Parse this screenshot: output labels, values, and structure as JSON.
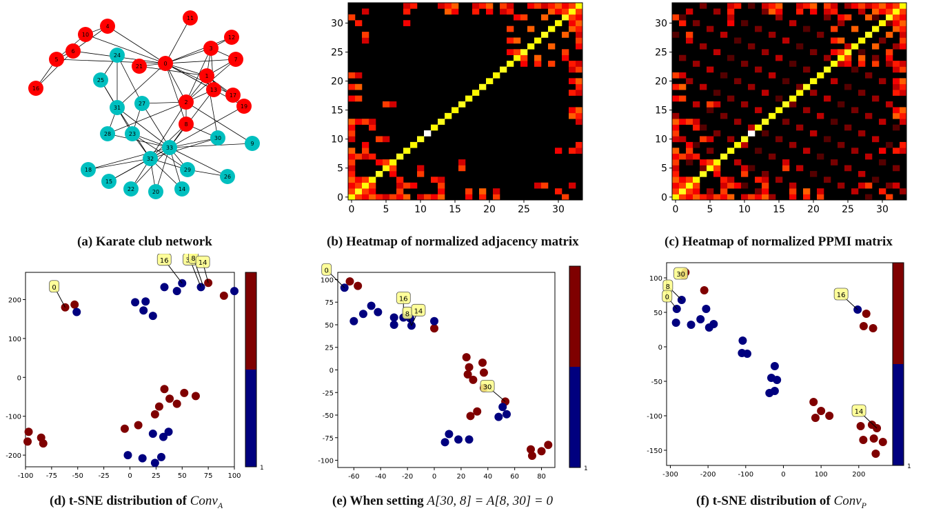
{
  "captions": {
    "a": "(a) Karate club network",
    "b": "(b) Heatmap of normalized adjacency matrix",
    "c": "(c) Heatmap of normalized PPMI matrix",
    "d_prefix": "(d) t-SNE distribution of ",
    "d_math": "Conv",
    "d_sub": "A",
    "e_prefix": "(e) When setting ",
    "e_math": "A[30, 8] = A[8, 30] = 0",
    "f_prefix": "(f) t-SNE distribution of ",
    "f_math": "Conv",
    "f_sub": "P"
  },
  "colors": {
    "red_group": "#ff0000",
    "cyan_group": "#00bfbf",
    "navy": "#00007f",
    "maroon": "#7f0000",
    "annotation": "#ffff88"
  },
  "chart_data": [
    {
      "type": "network",
      "nodes": [
        {
          "id": "0",
          "group": "red"
        },
        {
          "id": "1",
          "group": "red"
        },
        {
          "id": "2",
          "group": "red"
        },
        {
          "id": "3",
          "group": "red"
        },
        {
          "id": "4",
          "group": "red"
        },
        {
          "id": "5",
          "group": "red"
        },
        {
          "id": "6",
          "group": "red"
        },
        {
          "id": "7",
          "group": "red"
        },
        {
          "id": "8",
          "group": "red"
        },
        {
          "id": "10",
          "group": "red"
        },
        {
          "id": "11",
          "group": "red"
        },
        {
          "id": "12",
          "group": "red"
        },
        {
          "id": "13",
          "group": "red"
        },
        {
          "id": "16",
          "group": "red"
        },
        {
          "id": "17",
          "group": "red"
        },
        {
          "id": "19",
          "group": "red"
        },
        {
          "id": "21",
          "group": "red"
        },
        {
          "id": "9",
          "group": "cyan"
        },
        {
          "id": "14",
          "group": "cyan"
        },
        {
          "id": "15",
          "group": "cyan"
        },
        {
          "id": "18",
          "group": "cyan"
        },
        {
          "id": "20",
          "group": "cyan"
        },
        {
          "id": "22",
          "group": "cyan"
        },
        {
          "id": "23",
          "group": "cyan"
        },
        {
          "id": "24",
          "group": "cyan"
        },
        {
          "id": "25",
          "group": "cyan"
        },
        {
          "id": "26",
          "group": "cyan"
        },
        {
          "id": "27",
          "group": "cyan"
        },
        {
          "id": "28",
          "group": "cyan"
        },
        {
          "id": "29",
          "group": "cyan"
        },
        {
          "id": "30",
          "group": "cyan"
        },
        {
          "id": "31",
          "group": "cyan"
        },
        {
          "id": "32",
          "group": "cyan"
        },
        {
          "id": "33",
          "group": "cyan"
        }
      ]
    },
    {
      "type": "heatmap",
      "name": "normalized adjacency",
      "size": 34,
      "xticks": [
        0,
        5,
        10,
        15,
        20,
        25,
        30
      ],
      "yticks": [
        0,
        5,
        10,
        15,
        20,
        25,
        30
      ],
      "colormap": "hot"
    },
    {
      "type": "heatmap",
      "name": "normalized PPMI",
      "size": 34,
      "xticks": [
        0,
        5,
        10,
        15,
        20,
        25,
        30
      ],
      "yticks": [
        0,
        5,
        10,
        15,
        20,
        25,
        30
      ],
      "colormap": "hot"
    },
    {
      "type": "scatter",
      "xlim": [
        -100,
        100
      ],
      "ylim": [
        -230,
        270
      ],
      "xticks": [
        -100,
        -75,
        -50,
        -25,
        0,
        25,
        50,
        75,
        100
      ],
      "yticks": [
        -200,
        -100,
        0,
        100,
        200
      ],
      "colorbar_tick": "1",
      "series": [
        {
          "color": "maroon",
          "points": [
            [
              -62,
              180
            ],
            [
              -53,
              187
            ],
            [
              75,
              243
            ],
            [
              90,
              210
            ],
            [
              -97,
              -140
            ],
            [
              -98,
              -165
            ],
            [
              -85,
              -155
            ],
            [
              -83,
              -170
            ],
            [
              -5,
              -132
            ],
            [
              8,
              -123
            ],
            [
              24,
              -95
            ],
            [
              28,
              -75
            ],
            [
              33,
              -30
            ],
            [
              38,
              -55
            ],
            [
              45,
              -68
            ],
            [
              52,
              -40
            ],
            [
              63,
              -48
            ]
          ]
        },
        {
          "color": "navy",
          "points": [
            [
              -51,
              168
            ],
            [
              5,
              193
            ],
            [
              13,
              172
            ],
            [
              15,
              195
            ],
            [
              22,
              158
            ],
            [
              33,
              232
            ],
            [
              45,
              222
            ],
            [
              50,
              242
            ],
            [
              68,
              232
            ],
            [
              100,
              222
            ],
            [
              -2,
              -200
            ],
            [
              12,
              -208
            ],
            [
              22,
              -145
            ],
            [
              24,
              -220
            ],
            [
              30,
              -205
            ],
            [
              32,
              -153
            ],
            [
              37,
              -140
            ]
          ]
        }
      ],
      "annotations": [
        {
          "label": "0",
          "x": -62,
          "y": 180
        },
        {
          "label": "16",
          "x": 50,
          "y": 242
        },
        {
          "label": "30",
          "x": 68,
          "y": 232
        },
        {
          "label": "8",
          "x": 70,
          "y": 236
        },
        {
          "label": "14",
          "x": 75,
          "y": 243
        }
      ]
    },
    {
      "type": "scatter",
      "xlim": [
        -72,
        90
      ],
      "ylim": [
        -108,
        108
      ],
      "xticks": [
        -60,
        -40,
        -20,
        0,
        20,
        40,
        60,
        80
      ],
      "yticks": [
        -100,
        -75,
        -50,
        -25,
        0,
        25,
        50,
        75,
        100
      ],
      "colorbar_tick": "1",
      "series": [
        {
          "color": "maroon",
          "points": [
            [
              -63,
              98
            ],
            [
              -57,
              93
            ],
            [
              0,
              46
            ],
            [
              24,
              14
            ],
            [
              26,
              3
            ],
            [
              25,
              -5
            ],
            [
              29,
              -11
            ],
            [
              36,
              8
            ],
            [
              37,
              -3
            ],
            [
              37,
              -20
            ],
            [
              53,
              -35
            ],
            [
              27,
              -51
            ],
            [
              32,
              -46
            ],
            [
              72,
              -88
            ],
            [
              73,
              -95
            ],
            [
              80,
              -90
            ],
            [
              85,
              -83
            ]
          ]
        },
        {
          "color": "navy",
          "points": [
            [
              -67,
              91
            ],
            [
              -60,
              54
            ],
            [
              -53,
              62
            ],
            [
              -47,
              71
            ],
            [
              -42,
              64
            ],
            [
              -30,
              50
            ],
            [
              -30,
              58
            ],
            [
              -23,
              58
            ],
            [
              -18,
              57
            ],
            [
              -17,
              49
            ],
            [
              0,
              54
            ],
            [
              48,
              -52
            ],
            [
              51,
              -41
            ],
            [
              54,
              -49
            ],
            [
              8,
              -80
            ],
            [
              11,
              -71
            ],
            [
              18,
              -77
            ],
            [
              26,
              -77
            ]
          ]
        }
      ],
      "annotations": [
        {
          "label": "0",
          "x": -67,
          "y": 91
        },
        {
          "label": "16",
          "x": -23,
          "y": 58
        },
        {
          "label": "8",
          "x": -17,
          "y": 49
        },
        {
          "label": "14",
          "x": -17,
          "y": 49
        },
        {
          "label": "30",
          "x": 53,
          "y": -35
        }
      ]
    },
    {
      "type": "scatter",
      "xlim": [
        -310,
        290
      ],
      "ylim": [
        -172,
        122
      ],
      "xticks": [
        -300,
        -200,
        -100,
        0,
        100,
        200
      ],
      "yticks": [
        -150,
        -100,
        -50,
        0,
        50,
        100
      ],
      "colorbar_tick": "1",
      "series": [
        {
          "color": "maroon",
          "points": [
            [
              -260,
              108
            ],
            [
              -265,
              104
            ],
            [
              -210,
              82
            ],
            [
              220,
              48
            ],
            [
              213,
              30
            ],
            [
              238,
              27
            ],
            [
              80,
              -80
            ],
            [
              85,
              -103
            ],
            [
              100,
              -93
            ],
            [
              122,
              -100
            ],
            [
              205,
              -115
            ],
            [
              212,
              -135
            ],
            [
              235,
              -113
            ],
            [
              240,
              -133
            ],
            [
              248,
              -118
            ],
            [
              264,
              -138
            ],
            [
              245,
              -155
            ]
          ]
        },
        {
          "color": "navy",
          "points": [
            [
              -283,
              55
            ],
            [
              -270,
              68
            ],
            [
              -285,
              35
            ],
            [
              -245,
              32
            ],
            [
              -220,
              40
            ],
            [
              -205,
              55
            ],
            [
              -197,
              28
            ],
            [
              -185,
              33
            ],
            [
              -108,
              9
            ],
            [
              -110,
              -9
            ],
            [
              -96,
              -10
            ],
            [
              -32,
              -45
            ],
            [
              -23,
              -28
            ],
            [
              -17,
              -48
            ],
            [
              -37,
              -67
            ],
            [
              -23,
              -64
            ],
            [
              197,
              54
            ]
          ]
        }
      ],
      "annotations": [
        {
          "label": "30",
          "x": -265,
          "y": 104
        },
        {
          "label": "8",
          "x": -270,
          "y": 68
        },
        {
          "label": "0",
          "x": -283,
          "y": 55
        },
        {
          "label": "16",
          "x": 197,
          "y": 54
        },
        {
          "label": "14",
          "x": 248,
          "y": -118
        }
      ]
    }
  ]
}
